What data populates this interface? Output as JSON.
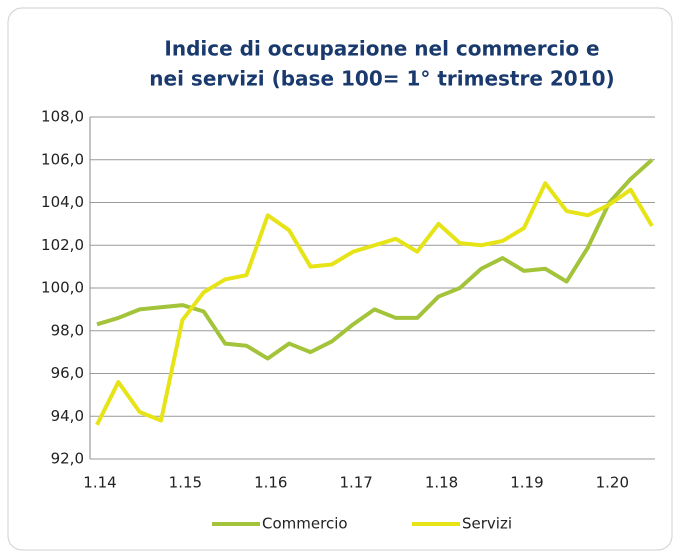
{
  "chart_data": {
    "type": "line",
    "title": [
      "Indice di occupazione nel commercio e",
      "nei servizi (base 100= 1° trimestre 2010)"
    ],
    "categories": [
      "1.14",
      null,
      null,
      null,
      "1.15",
      null,
      null,
      null,
      "1.16",
      null,
      null,
      null,
      "1.17",
      null,
      null,
      null,
      "1.18",
      null,
      null,
      null,
      "1.19",
      null,
      null,
      null,
      "1.20",
      null,
      null
    ],
    "series": [
      {
        "name": "Commercio",
        "color": "#a3c43a",
        "values": [
          98.3,
          98.6,
          99.0,
          99.1,
          99.2,
          98.9,
          97.4,
          97.3,
          96.7,
          97.4,
          97.0,
          97.5,
          98.3,
          99.0,
          98.6,
          98.6,
          99.6,
          100.0,
          100.9,
          101.4,
          100.8,
          100.9,
          100.3,
          101.9,
          104.0,
          105.1,
          106.0
        ]
      },
      {
        "name": "Servizi",
        "color": "#e6e417",
        "values": [
          93.6,
          95.6,
          94.2,
          93.8,
          98.5,
          99.8,
          100.4,
          100.6,
          103.4,
          102.7,
          101.0,
          101.1,
          101.7,
          102.0,
          102.3,
          101.7,
          103.0,
          102.1,
          102.0,
          102.2,
          102.8,
          104.9,
          103.6,
          103.4,
          103.9,
          104.6,
          102.9
        ]
      }
    ],
    "ylim": [
      92,
      108
    ],
    "yticks": [
      {
        "value": 92,
        "label": "92,0"
      },
      {
        "value": 94,
        "label": "94,0"
      },
      {
        "value": 96,
        "label": "96,0"
      },
      {
        "value": 98,
        "label": "98,0"
      },
      {
        "value": 100,
        "label": "100,0"
      },
      {
        "value": 102,
        "label": "102,0"
      },
      {
        "value": 104,
        "label": "104,0"
      },
      {
        "value": 106,
        "label": "106,0"
      },
      {
        "value": 108,
        "label": "108,0"
      }
    ],
    "grid": true,
    "legend": "bottom"
  }
}
